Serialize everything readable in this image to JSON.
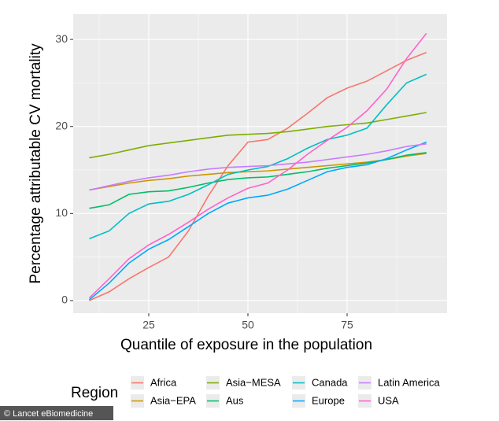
{
  "chart_data": {
    "type": "line",
    "xlabel": "Quantile of exposure in the population",
    "ylabel": "Percentage attributable CV mortality",
    "legend_title": "Region",
    "legend_position": "bottom",
    "grid": true,
    "watermark": "© Lancet eBiomedicine",
    "x": [
      10,
      15,
      20,
      25,
      30,
      35,
      40,
      45,
      50,
      55,
      60,
      65,
      70,
      75,
      80,
      85,
      90,
      95
    ],
    "xlim": [
      5.95,
      100.2
    ],
    "xticks": [
      25,
      50,
      75
    ],
    "ylim": [
      -1.45,
      32.9
    ],
    "yticks": [
      0,
      10,
      20,
      30
    ],
    "series": [
      {
        "name": "Africa",
        "color": "#F8766D",
        "values": [
          0,
          1,
          2.5,
          3.8,
          5,
          8,
          12,
          15.5,
          18.2,
          18.5,
          19.8,
          21.5,
          23.3,
          24.4,
          25.2,
          26.4,
          27.6,
          28.5
        ]
      },
      {
        "name": "Asia−EPA",
        "color": "#CD9600",
        "values": [
          12.7,
          13.1,
          13.5,
          13.8,
          14,
          14.3,
          14.5,
          14.7,
          14.8,
          14.9,
          15.1,
          15.3,
          15.5,
          15.7,
          15.9,
          16.2,
          16.6,
          16.9
        ]
      },
      {
        "name": "Asia−MESA",
        "color": "#7CAE00",
        "values": [
          16.4,
          16.8,
          17.3,
          17.8,
          18.1,
          18.4,
          18.7,
          19,
          19.1,
          19.2,
          19.4,
          19.7,
          20,
          20.2,
          20.4,
          20.8,
          21.2,
          21.6
        ]
      },
      {
        "name": "Aus",
        "color": "#00BE67",
        "values": [
          10.6,
          11,
          12.2,
          12.5,
          12.6,
          13,
          13.5,
          13.9,
          14.1,
          14.2,
          14.5,
          14.8,
          15.2,
          15.5,
          15.8,
          16.2,
          16.7,
          17
        ]
      },
      {
        "name": "Canada",
        "color": "#00BFC4",
        "values": [
          7.1,
          8,
          10,
          11.1,
          11.4,
          12.2,
          13.3,
          14.5,
          15,
          15.4,
          16.3,
          17.5,
          18.5,
          19,
          19.8,
          22.5,
          25,
          26
        ]
      },
      {
        "name": "Europe",
        "color": "#00A9FF",
        "values": [
          0.1,
          2,
          4.3,
          5.9,
          7,
          8.5,
          10,
          11.2,
          11.8,
          12.1,
          12.8,
          13.8,
          14.8,
          15.3,
          15.6,
          16.3,
          17.3,
          18.2
        ]
      },
      {
        "name": "Latin America",
        "color": "#C77CFF",
        "values": [
          12.7,
          13.2,
          13.7,
          14.1,
          14.4,
          14.8,
          15.1,
          15.3,
          15.4,
          15.5,
          15.7,
          15.9,
          16.2,
          16.5,
          16.8,
          17.2,
          17.7,
          18
        ]
      },
      {
        "name": "USA",
        "color": "#FF61CC",
        "values": [
          0.3,
          2.5,
          4.8,
          6.4,
          7.6,
          9,
          10.5,
          11.8,
          12.9,
          13.5,
          15,
          16.8,
          18.4,
          19.9,
          21.8,
          24.3,
          27.8,
          30.7
        ]
      }
    ]
  }
}
